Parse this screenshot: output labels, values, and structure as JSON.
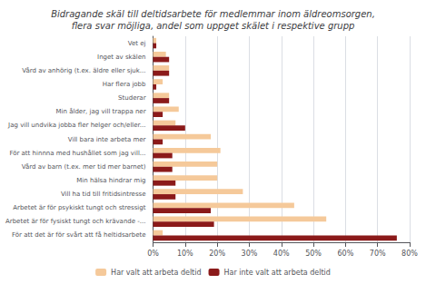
{
  "chart_data": {
    "type": "bar",
    "orientation": "horizontal",
    "title": "Bidragande skäl till deltidsarbete för medlemmar inom äldreomsorgen,\nflera svar möjliga, andel som uppget skälet i respektive grupp",
    "categories": [
      "Vet ej",
      "Inget av skälen",
      "Vård av anhörig (t.ex. äldre eller sjuk...",
      "Har flera jobb",
      "Studerar",
      "Min ålder, jag vill trappa ner",
      "Jag vill undvika jobba fler helger och/eller...",
      "Vill bara inte arbeta mer",
      "För att hinnna med hushållet som jag vill...",
      "Vård av barn (t.ex. mer tid mer barnet)",
      "Min hälsa hindrar mig",
      "Vill ha tid till fritidsintresse",
      "Arbetet är för psykiskt tungt och stressigt",
      "Arbetet är för fysiskt tungt och krävande -...",
      "För att det är för svårt att få heltidsarbete"
    ],
    "series": [
      {
        "name": "Har valt att arbeta deltid",
        "color": "#f5c99a",
        "values": [
          1,
          4,
          5,
          3,
          5,
          8,
          7,
          18,
          21,
          20,
          20,
          28,
          44,
          54,
          3
        ]
      },
      {
        "name": "Har inte valt att arbeta deltid",
        "color": "#8b1a1a",
        "values": [
          1,
          5,
          5,
          1,
          5,
          3,
          10,
          3,
          6,
          6,
          7,
          7,
          18,
          19,
          76
        ]
      }
    ],
    "xlim": [
      0,
      80
    ],
    "xticks": [
      {
        "value": 0,
        "label": "0%"
      },
      {
        "value": 10,
        "label": "10%"
      },
      {
        "value": 20,
        "label": "20%"
      },
      {
        "value": 30,
        "label": "30%"
      },
      {
        "value": 40,
        "label": "40%"
      },
      {
        "value": 50,
        "label": "50%"
      },
      {
        "value": 60,
        "label": "60%"
      },
      {
        "value": 70,
        "label": "70%"
      },
      {
        "value": 80,
        "label": "80%"
      }
    ],
    "grid": true,
    "legend": "bottom"
  }
}
